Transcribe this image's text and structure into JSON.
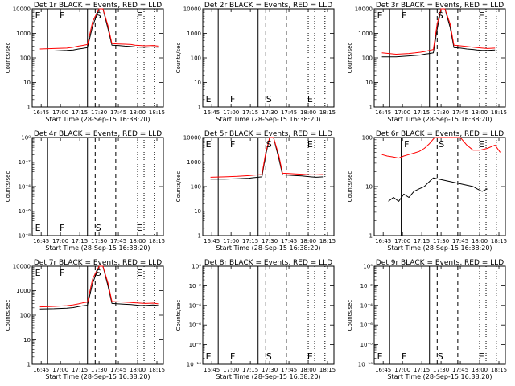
{
  "x_ticks": [
    "16:45",
    "17:00",
    "17:15",
    "17:30",
    "17:45",
    "18:00",
    "18:15"
  ],
  "xlabel": "Start Time (28-Sep-15 16:38:20)",
  "ylabel": "Counts/sec",
  "colors": {
    "events": "#000000",
    "lld": "#ff0000"
  },
  "chart_data": [
    {
      "type": "line",
      "title": "Det 1r BLACK = Events, RED = LLD",
      "y_ticks": [
        "1",
        "10",
        "100",
        "1000",
        "10000"
      ],
      "markers": [
        "E",
        "F",
        "S",
        "E"
      ],
      "series": [
        {
          "name": "Events",
          "color": "#000000",
          "x": [
            "16:44",
            "16:55",
            "17:05",
            "17:10",
            "17:14",
            "17:17",
            "17:21",
            "17:25",
            "17:30",
            "17:33",
            "17:37",
            "17:40",
            "17:45",
            "17:50",
            "17:55",
            "17:58",
            "18:02",
            "18:06",
            "18:12",
            "18:16"
          ],
          "y": [
            190,
            190,
            200,
            210,
            230,
            240,
            260,
            2000,
            10000,
            10000,
            1500,
            330,
            320,
            300,
            290,
            280,
            270,
            270,
            280,
            270
          ]
        },
        {
          "name": "LLD",
          "color": "#ff0000",
          "x": [
            "16:44",
            "16:55",
            "17:05",
            "17:10",
            "17:14",
            "17:17",
            "17:21",
            "17:25",
            "17:30",
            "17:33",
            "17:37",
            "17:40",
            "17:45",
            "17:50",
            "17:55",
            "17:58",
            "18:02",
            "18:06",
            "18:12",
            "18:16"
          ],
          "y": [
            230,
            240,
            250,
            270,
            300,
            320,
            350,
            3000,
            10000,
            10000,
            2000,
            380,
            370,
            360,
            350,
            330,
            320,
            310,
            320,
            300
          ]
        }
      ]
    },
    {
      "type": "line",
      "title": "Det 2r BLACK = Events, RED = LLD",
      "y_ticks": [
        "1",
        "10",
        "100",
        "1000",
        "10000"
      ],
      "markers": [
        "E",
        "F",
        "S",
        "E"
      ],
      "series": []
    },
    {
      "type": "line",
      "title": "Det 3r BLACK = Events, RED = LLD",
      "y_ticks": [
        "1",
        "10",
        "100",
        "1000",
        "10000"
      ],
      "markers": [
        "E",
        "F",
        "S",
        "E"
      ],
      "series": [
        {
          "name": "Events",
          "color": "#000000",
          "x": [
            "16:44",
            "16:55",
            "17:05",
            "17:10",
            "17:14",
            "17:17",
            "17:21",
            "17:24",
            "17:27",
            "17:30",
            "17:33",
            "17:37",
            "17:40",
            "17:45",
            "17:50",
            "17:55",
            "17:58",
            "18:02",
            "18:06",
            "18:12"
          ],
          "y": [
            110,
            110,
            120,
            125,
            130,
            140,
            150,
            160,
            1500,
            10000,
            10000,
            1800,
            260,
            250,
            230,
            220,
            210,
            200,
            200,
            210
          ]
        },
        {
          "name": "LLD",
          "color": "#ff0000",
          "x": [
            "16:44",
            "16:55",
            "17:05",
            "17:10",
            "17:14",
            "17:17",
            "17:21",
            "17:24",
            "17:27",
            "17:30",
            "17:33",
            "17:37",
            "17:40",
            "17:45",
            "17:50",
            "17:55",
            "17:58",
            "18:02",
            "18:06",
            "18:12"
          ],
          "y": [
            160,
            140,
            150,
            160,
            170,
            180,
            200,
            220,
            2500,
            10000,
            10000,
            2500,
            330,
            310,
            290,
            270,
            260,
            250,
            240,
            250
          ]
        }
      ]
    },
    {
      "type": "line",
      "title": "Det 4r BLACK = Events, RED = LLD",
      "y_ticks": [
        "10⁻⁸",
        "10⁻⁶",
        "10⁻⁴",
        "10⁻²",
        "10⁰"
      ],
      "markers": [
        "E",
        "F",
        "S",
        "E"
      ],
      "series": []
    },
    {
      "type": "line",
      "title": "Det 5r BLACK = Events, RED = LLD",
      "y_ticks": [
        "1",
        "10",
        "100",
        "1000",
        "10000"
      ],
      "markers": [
        "E",
        "F",
        "S",
        "E"
      ],
      "series": [
        {
          "name": "Events",
          "color": "#000000",
          "x": [
            "16:44",
            "16:55",
            "17:05",
            "17:10",
            "17:14",
            "17:17",
            "17:21",
            "17:24",
            "17:27",
            "17:30",
            "17:33",
            "17:37",
            "17:40",
            "17:45",
            "17:50",
            "17:55",
            "17:58",
            "18:02",
            "18:06",
            "18:12"
          ],
          "y": [
            200,
            200,
            210,
            215,
            220,
            230,
            240,
            250,
            2000,
            10000,
            10000,
            1500,
            300,
            290,
            280,
            270,
            260,
            250,
            240,
            250
          ]
        },
        {
          "name": "LLD",
          "color": "#ff0000",
          "x": [
            "16:44",
            "16:55",
            "17:05",
            "17:10",
            "17:14",
            "17:17",
            "17:21",
            "17:24",
            "17:27",
            "17:30",
            "17:33",
            "17:37",
            "17:40",
            "17:45",
            "17:50",
            "17:55",
            "17:58",
            "18:02",
            "18:06",
            "18:12"
          ],
          "y": [
            240,
            250,
            260,
            270,
            280,
            290,
            300,
            310,
            2500,
            10000,
            10000,
            2000,
            350,
            340,
            330,
            320,
            310,
            300,
            300,
            310
          ]
        }
      ]
    },
    {
      "type": "line",
      "title": "Det 6r BLACK = Events, RED = LLD",
      "y_ticks": [
        "1",
        "10",
        "100"
      ],
      "markers": [
        "F",
        "S",
        "E"
      ],
      "series": [
        {
          "name": "Events",
          "color": "#000000",
          "x": [
            "16:49",
            "16:53",
            "16:57",
            "17:01",
            "17:05",
            "17:09",
            "17:13",
            "17:17",
            "17:20",
            "17:24",
            "17:55",
            "17:58",
            "18:02",
            "18:06"
          ],
          "y": [
            5,
            6,
            5,
            7,
            6,
            8,
            9,
            10,
            12,
            15,
            10,
            9,
            8,
            9
          ]
        },
        {
          "name": "LLD",
          "color": "#ff0000",
          "x": [
            "16:44",
            "16:48",
            "16:53",
            "16:57",
            "17:01",
            "17:05",
            "17:09",
            "17:13",
            "17:17",
            "17:21",
            "17:25",
            "17:45",
            "17:50",
            "17:55",
            "18:00",
            "18:06",
            "18:12",
            "18:16"
          ],
          "y": [
            45,
            42,
            40,
            38,
            42,
            45,
            48,
            52,
            60,
            75,
            100,
            100,
            70,
            55,
            55,
            60,
            70,
            50
          ]
        }
      ]
    },
    {
      "type": "line",
      "title": "Det 7r BLACK = Events, RED = LLD",
      "y_ticks": [
        "1",
        "10",
        "100",
        "1000",
        "10000"
      ],
      "markers": [
        "E",
        "F",
        "S",
        "E"
      ],
      "series": [
        {
          "name": "Events",
          "color": "#000000",
          "x": [
            "16:44",
            "16:55",
            "17:05",
            "17:10",
            "17:14",
            "17:17",
            "17:21",
            "17:25",
            "17:30",
            "17:33",
            "17:37",
            "17:40",
            "17:45",
            "17:50",
            "17:55",
            "17:58",
            "18:02",
            "18:06",
            "18:12",
            "18:16"
          ],
          "y": [
            180,
            185,
            195,
            205,
            225,
            240,
            255,
            2000,
            10000,
            10000,
            1500,
            300,
            290,
            280,
            270,
            260,
            250,
            250,
            260,
            250
          ]
        },
        {
          "name": "LLD",
          "color": "#ff0000",
          "x": [
            "16:44",
            "16:55",
            "17:05",
            "17:10",
            "17:14",
            "17:17",
            "17:21",
            "17:25",
            "17:30",
            "17:33",
            "17:37",
            "17:40",
            "17:45",
            "17:50",
            "17:55",
            "17:58",
            "18:02",
            "18:06",
            "18:12",
            "18:16"
          ],
          "y": [
            220,
            230,
            245,
            265,
            290,
            315,
            340,
            3000,
            10000,
            10000,
            2000,
            360,
            350,
            340,
            330,
            320,
            310,
            300,
            310,
            290
          ]
        }
      ]
    },
    {
      "type": "line",
      "title": "Det 8r BLACK = Events, RED = LLD",
      "y_ticks": [
        "10⁻¹⁰",
        "10⁻⁸",
        "10⁻⁶",
        "10⁻⁴",
        "10⁻²",
        "10⁰"
      ],
      "markers": [
        "E",
        "F",
        "S",
        "E"
      ],
      "series": []
    },
    {
      "type": "line",
      "title": "Det 9r BLACK = Events, RED = LLD",
      "y_ticks": [
        "10⁻¹⁰",
        "10⁻⁸",
        "10⁻⁶",
        "10⁻⁴",
        "10⁻²",
        "10⁰"
      ],
      "markers": [
        "E",
        "F",
        "S",
        "E"
      ],
      "series": []
    }
  ]
}
